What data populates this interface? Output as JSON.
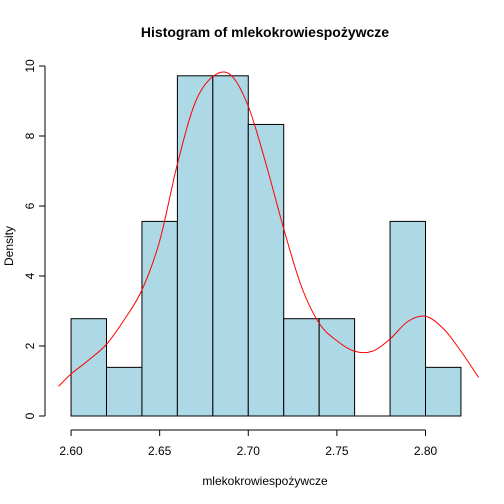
{
  "chart_data": {
    "type": "bar",
    "title": "Histogram of mlekokrowiespożywcze",
    "xlabel": "mlekokrowiespożywcze",
    "ylabel": "Density",
    "bins": [
      {
        "start": 2.6,
        "end": 2.62,
        "density": 2.78
      },
      {
        "start": 2.62,
        "end": 2.64,
        "density": 1.39
      },
      {
        "start": 2.64,
        "end": 2.66,
        "density": 5.56
      },
      {
        "start": 2.66,
        "end": 2.68,
        "density": 9.72
      },
      {
        "start": 2.68,
        "end": 2.7,
        "density": 9.72
      },
      {
        "start": 2.7,
        "end": 2.72,
        "density": 8.33
      },
      {
        "start": 2.72,
        "end": 2.74,
        "density": 2.78
      },
      {
        "start": 2.74,
        "end": 2.76,
        "density": 2.78
      },
      {
        "start": 2.76,
        "end": 2.78,
        "density": 0
      },
      {
        "start": 2.78,
        "end": 2.8,
        "density": 5.56
      },
      {
        "start": 2.8,
        "end": 2.82,
        "density": 1.39
      }
    ],
    "density_curve": {
      "x": [
        2.593,
        2.6,
        2.61,
        2.62,
        2.63,
        2.64,
        2.65,
        2.66,
        2.67,
        2.68,
        2.69,
        2.7,
        2.71,
        2.72,
        2.73,
        2.74,
        2.75,
        2.76,
        2.77,
        2.78,
        2.79,
        2.8,
        2.81,
        2.82,
        2.83
      ],
      "y": [
        0.85,
        1.2,
        1.6,
        2.05,
        2.75,
        3.6,
        5.0,
        7.2,
        8.95,
        9.7,
        9.75,
        8.85,
        7.2,
        5.35,
        3.7,
        2.65,
        2.15,
        1.85,
        1.85,
        2.2,
        2.7,
        2.85,
        2.5,
        1.85,
        1.1
      ]
    },
    "xticks": [
      "2.60",
      "2.65",
      "2.70",
      "2.75",
      "2.80"
    ],
    "yticks": [
      "0",
      "2",
      "4",
      "6",
      "8",
      "10"
    ],
    "xlim": [
      2.5932,
      2.8268
    ],
    "ylim": [
      0,
      10.2
    ],
    "bar_fill": "#add8e6",
    "bar_stroke": "#000000",
    "curve_color": "#ff0000"
  }
}
